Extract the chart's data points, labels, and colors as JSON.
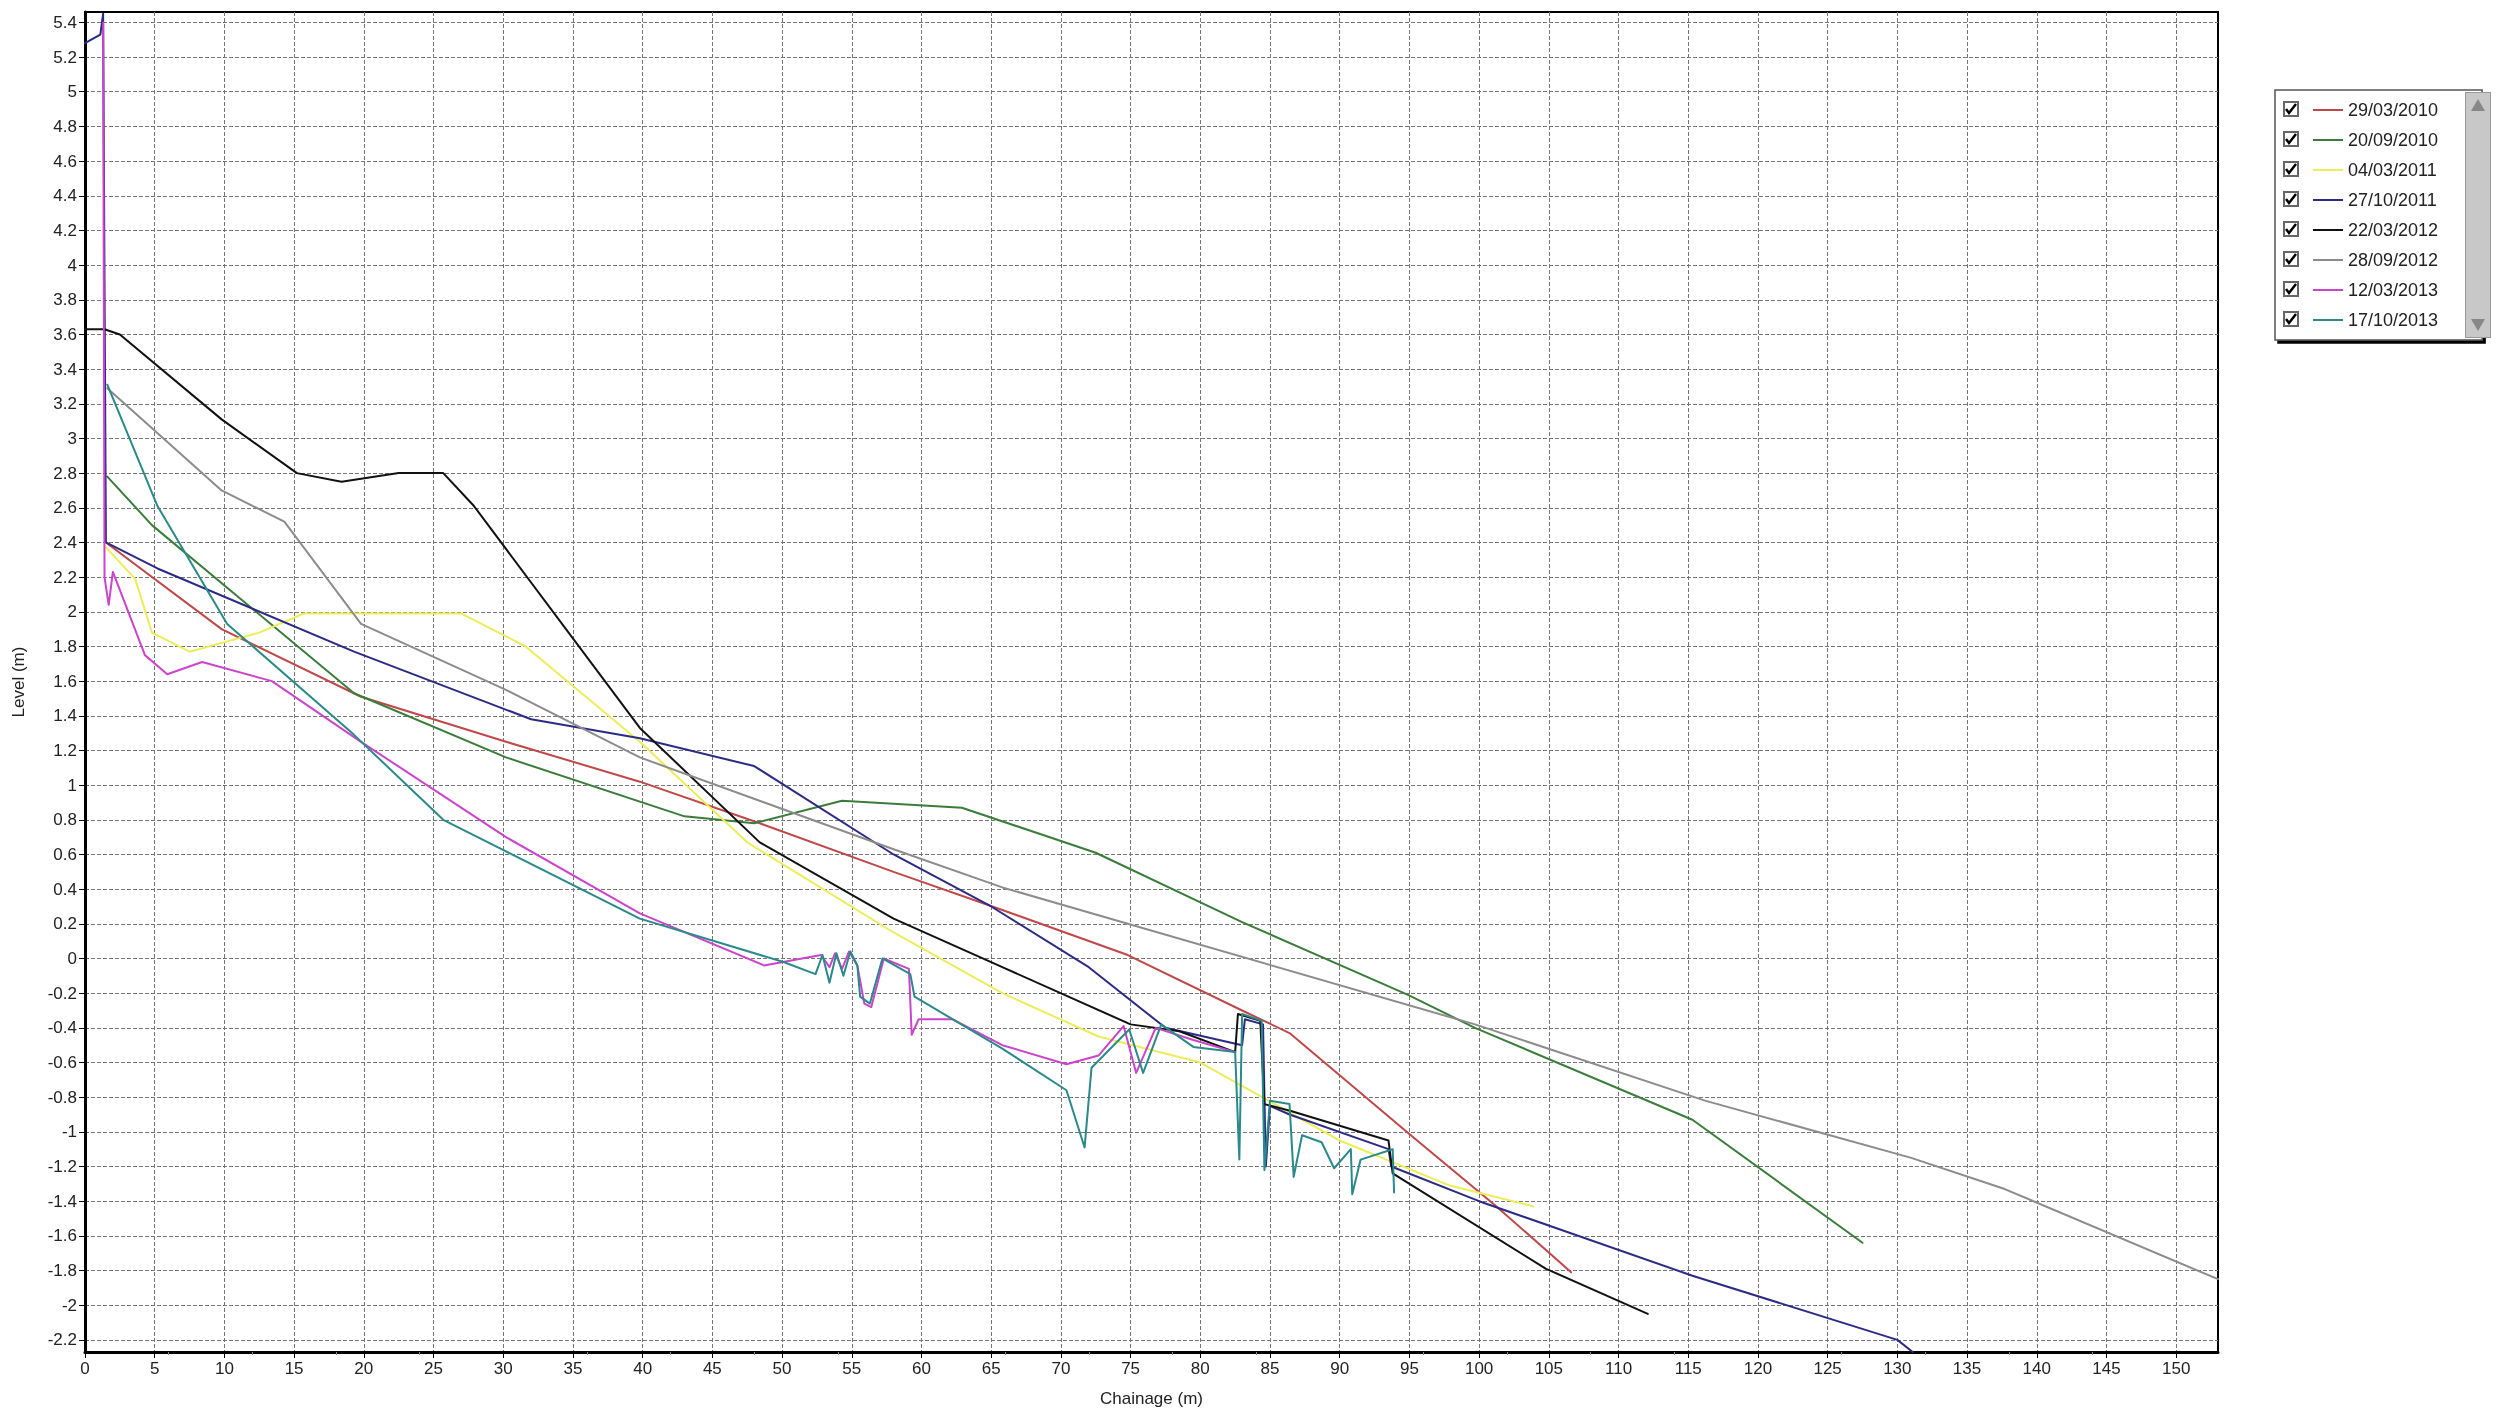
{
  "chart_data": {
    "type": "line",
    "xlabel": "Chainage (m)",
    "ylabel": "Level (m)",
    "xlim": [
      0,
      153
    ],
    "ylim": [
      -2.27,
      5.46
    ],
    "xticks": [
      0,
      5,
      10,
      15,
      20,
      25,
      30,
      35,
      40,
      45,
      50,
      55,
      60,
      65,
      70,
      75,
      80,
      85,
      90,
      95,
      100,
      105,
      110,
      115,
      120,
      125,
      130,
      135,
      140,
      145,
      150
    ],
    "yticks": [
      -2.2,
      -2,
      -1.8,
      -1.6,
      -1.4,
      -1.2,
      -1,
      -0.8,
      -0.6,
      -0.4,
      -0.2,
      0,
      0.2,
      0.4,
      0.6,
      0.8,
      1,
      1.2,
      1.4,
      1.6,
      1.8,
      2,
      2.2,
      2.4,
      2.6,
      2.8,
      3,
      3.2,
      3.4,
      3.6,
      3.8,
      4,
      4.2,
      4.4,
      4.6,
      4.8,
      5,
      5.2,
      5.4
    ],
    "grid": true,
    "legend": "top right",
    "series": [
      {
        "name": "29/03/2010",
        "color": "#c04848",
        "x": [
          1.5,
          9.8,
          19.8,
          30.2,
          39.8,
          48.4,
          58,
          65.8,
          74.8,
          83,
          86.4,
          95.1,
          101.1,
          106.6
        ],
        "values": [
          2.4,
          1.9,
          1.51,
          1.25,
          1.02,
          0.78,
          0.5,
          0.28,
          0.02,
          -0.3,
          -0.43,
          -1.02,
          -1.42,
          -1.81
        ]
      },
      {
        "name": "20/09/2010",
        "color": "#3a7d3a",
        "x": [
          1.6,
          4.8,
          19.3,
          30.2,
          43,
          48,
          54.3,
          62.9,
          72.5,
          83,
          94.9,
          99.7,
          115.3,
          127.5
        ],
        "values": [
          2.78,
          2.5,
          1.53,
          1.16,
          0.82,
          0.78,
          0.91,
          0.87,
          0.61,
          0.21,
          -0.21,
          -0.4,
          -0.93,
          -1.64
        ]
      },
      {
        "name": "04/03/2011",
        "color": "#eded5a",
        "x": [
          1.4,
          3.6,
          4.8,
          7.5,
          12.5,
          15.7,
          27,
          31.6,
          39.8,
          47.5,
          58,
          65.8,
          72.7,
          80,
          90,
          97.9,
          103.9
        ],
        "values": [
          2.38,
          2.19,
          1.88,
          1.77,
          1.88,
          1.99,
          1.99,
          1.8,
          1.25,
          0.67,
          0.15,
          -0.2,
          -0.45,
          -0.6,
          -1.05,
          -1.31,
          -1.43
        ]
      },
      {
        "name": "27/10/2011",
        "color": "#2b2b85",
        "x": [
          0,
          1.1,
          1.3,
          1.4,
          1.5,
          5.2,
          19.3,
          32,
          39.8,
          48,
          58,
          65,
          72,
          77.5,
          83,
          83.2,
          84.5,
          84.7,
          85,
          86.4,
          93.5,
          93.7,
          100,
          115.3,
          130,
          131.1
        ],
        "values": [
          5.28,
          5.33,
          5.45,
          3.9,
          2.4,
          2.25,
          1.77,
          1.38,
          1.27,
          1.11,
          0.6,
          0.3,
          -0.05,
          -0.4,
          -0.5,
          -0.35,
          -0.38,
          -1.2,
          -0.85,
          -0.9,
          -1.1,
          -1.2,
          -1.4,
          -1.83,
          -2.2,
          -2.27
        ]
      },
      {
        "name": "22/03/2012",
        "color": "#111111",
        "x": [
          0,
          1.4,
          2.5,
          9.8,
          15.2,
          18.4,
          22.5,
          25.7,
          27.9,
          39.8,
          48.4,
          58,
          65.8,
          75,
          78.5,
          82.5,
          82.7,
          84.3,
          84.6,
          86.5,
          93.5,
          93.8,
          104.8,
          112.1
        ],
        "values": [
          3.63,
          3.63,
          3.6,
          3.11,
          2.8,
          2.75,
          2.8,
          2.8,
          2.61,
          1.33,
          0.67,
          0.23,
          -0.05,
          -0.38,
          -0.42,
          -0.54,
          -0.32,
          -0.36,
          -0.84,
          -0.88,
          -1.05,
          -1.24,
          -1.79,
          -2.05
        ]
      },
      {
        "name": "28/09/2012",
        "color": "#8c8c8c",
        "x": [
          1.6,
          9.8,
          14.3,
          19.8,
          30.2,
          39.8,
          58,
          65.8,
          99.7,
          116.2,
          131,
          137.7,
          153
        ],
        "values": [
          3.29,
          2.7,
          2.52,
          1.93,
          1.55,
          1.16,
          0.63,
          0.41,
          -0.38,
          -0.82,
          -1.15,
          -1.33,
          -1.85
        ]
      },
      {
        "name": "12/03/2013",
        "color": "#cc44cc",
        "x": [
          1.3,
          1.4,
          1.7,
          2,
          4.3,
          5.9,
          8.4,
          13.4,
          19.8,
          30.2,
          39.8,
          48.7,
          52.8,
          53.4,
          53.8,
          54.3,
          54.8,
          55.4,
          55.9,
          56.4,
          57.3,
          59.1,
          59.3,
          59.8,
          62.2,
          65.8,
          70.4,
          72.7,
          74.5,
          75.4,
          76.8,
          79.5,
          82.5
        ],
        "values": [
          5.4,
          2.2,
          2.04,
          2.23,
          1.75,
          1.64,
          1.71,
          1.6,
          1.25,
          0.7,
          0.26,
          -0.04,
          0.02,
          -0.05,
          0.03,
          -0.06,
          0.04,
          -0.04,
          -0.26,
          -0.28,
          0,
          -0.06,
          -0.44,
          -0.35,
          -0.35,
          -0.5,
          -0.61,
          -0.56,
          -0.39,
          -0.66,
          -0.4,
          -0.47,
          -0.54
        ]
      },
      {
        "name": "17/10/2013",
        "color": "#2a8a8a",
        "x": [
          1.6,
          5.2,
          10.2,
          19.3,
          25.7,
          39.8,
          50.1,
          52.4,
          52.9,
          53.4,
          53.9,
          54.4,
          54.9,
          55.4,
          55.6,
          56.3,
          57.2,
          59.2,
          59.5,
          65.8,
          70.4,
          71.7,
          72.2,
          74.9,
          75.9,
          77.2,
          79.5,
          82.5,
          82.8,
          83,
          84.4,
          84.6,
          85,
          86.4,
          86.7,
          87.3,
          88.7,
          89.6,
          90.8,
          90.9,
          91.5,
          93.8,
          93.9
        ],
        "values": [
          3.31,
          2.61,
          1.93,
          1.29,
          0.8,
          0.23,
          -0.02,
          -0.09,
          0.02,
          -0.14,
          0.03,
          -0.1,
          0.04,
          -0.04,
          -0.22,
          -0.26,
          0,
          -0.09,
          -0.22,
          -0.52,
          -0.76,
          -1.09,
          -0.63,
          -0.41,
          -0.66,
          -0.38,
          -0.51,
          -0.54,
          -1.16,
          -0.32,
          -0.36,
          -1.22,
          -0.82,
          -0.84,
          -1.26,
          -1.02,
          -1.06,
          -1.21,
          -1.1,
          -1.36,
          -1.16,
          -1.1,
          -1.35
        ]
      }
    ]
  }
}
